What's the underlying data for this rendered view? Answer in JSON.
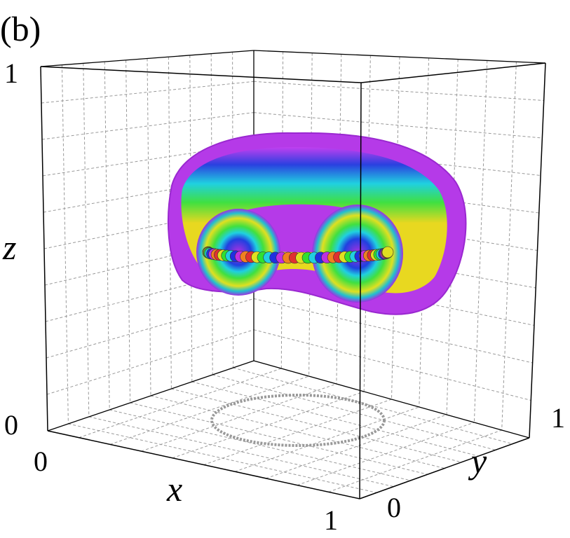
{
  "panel_label": "(b)",
  "axes": {
    "x": {
      "label": "x",
      "tick_min": "0",
      "tick_max": "1"
    },
    "y": {
      "label": "y",
      "tick_min": "0",
      "tick_max": "1"
    },
    "z": {
      "label": "z",
      "tick_min": "0",
      "tick_max": "1"
    }
  }
}
